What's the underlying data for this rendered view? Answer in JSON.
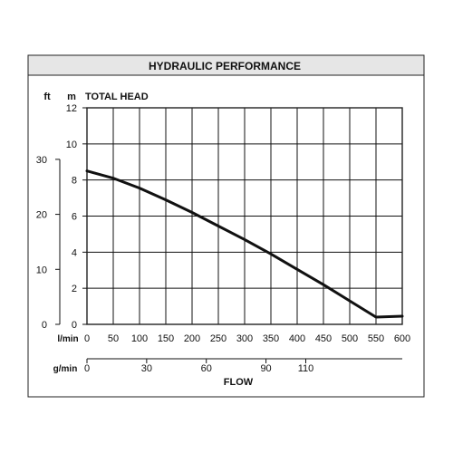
{
  "colors": {
    "panel": "#ffffff",
    "title_bar": "#e6e6e6",
    "frame": "#222222",
    "grid": "#111111",
    "curve": "#111111"
  },
  "title": "HYDRAULIC PERFORMANCE",
  "unit_ft": "ft",
  "unit_m": "m",
  "ylabel": "TOTAL HEAD",
  "xunit_lmin": "l/min",
  "xunit_gmin": "g/min",
  "xlabel": "FLOW",
  "chart_data": {
    "type": "line",
    "title": "HYDRAULIC PERFORMANCE",
    "xlabel": "FLOW",
    "ylabel": "TOTAL HEAD",
    "x_unit": "l/min",
    "y_unit": "m",
    "xlim": [
      0,
      600
    ],
    "ylim": [
      0,
      12
    ],
    "grid": true,
    "legend": "none",
    "x_ticks_lmin": [
      0,
      50,
      100,
      150,
      200,
      250,
      300,
      350,
      400,
      450,
      500,
      550,
      600
    ],
    "y_ticks_m": [
      0,
      2,
      4,
      6,
      8,
      10,
      12
    ],
    "y_ticks_ft": [
      0,
      10,
      20,
      30
    ],
    "x_ticks_gmin": [
      0,
      30,
      60,
      90,
      110
    ],
    "series": [
      {
        "x": [
          0,
          50,
          100,
          150,
          200,
          250,
          300,
          350,
          400,
          450,
          500,
          550,
          600
        ],
        "y": [
          8.5,
          8.1,
          7.55,
          6.9,
          6.2,
          5.45,
          4.7,
          3.9,
          3.05,
          2.2,
          1.3,
          0.4,
          0.45
        ]
      }
    ]
  }
}
